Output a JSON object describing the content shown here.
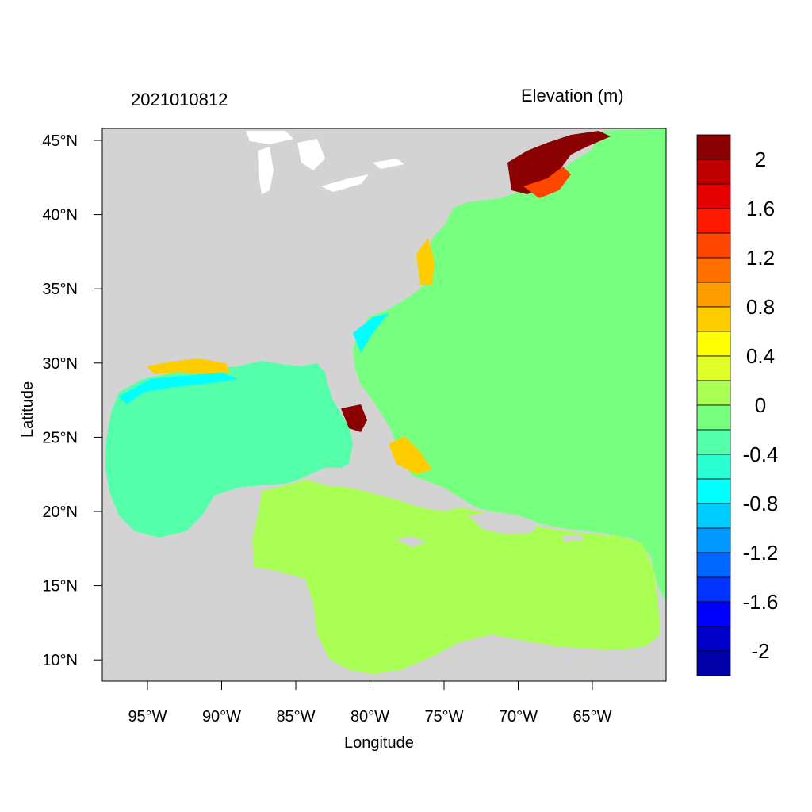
{
  "header": {
    "date_stamp": "2021010812",
    "variable": "Elevation (m)"
  },
  "axes": {
    "xlabel": "Longitude",
    "ylabel": "Latitude",
    "x_ticks": [
      "95°W",
      "90°W",
      "85°W",
      "80°W",
      "75°W",
      "70°W",
      "65°W"
    ],
    "y_ticks": [
      "45°N",
      "40°N",
      "35°N",
      "30°N",
      "25°N",
      "20°N",
      "15°N",
      "10°N"
    ]
  },
  "colorbar": {
    "labels": [
      "2",
      "1.6",
      "1.2",
      "0.8",
      "0.4",
      "0",
      "-0.4",
      "-0.8",
      "-1.2",
      "-1.6",
      "-2"
    ],
    "colors": [
      "#8b0000",
      "#c00000",
      "#e60000",
      "#ff1a00",
      "#ff4500",
      "#ff7000",
      "#ff9c00",
      "#ffcc00",
      "#ffff00",
      "#e0ff2a",
      "#aaff55",
      "#77ff80",
      "#55ffaa",
      "#2affd4",
      "#00ffff",
      "#00ccff",
      "#0099ff",
      "#0066ff",
      "#0033ff",
      "#0000ff",
      "#0000cc",
      "#0000aa"
    ]
  },
  "map_colors": {
    "land": "#d3d3d3",
    "lakes": "#ffffff",
    "gulf": "#55ffaa",
    "atlantic": "#77ff80",
    "caribbean": "#aaff55",
    "surge_high": "#8b0000",
    "surge_mid": "#ff4500",
    "surge_low": "#ffcc00",
    "depression": "#00ffff"
  }
}
